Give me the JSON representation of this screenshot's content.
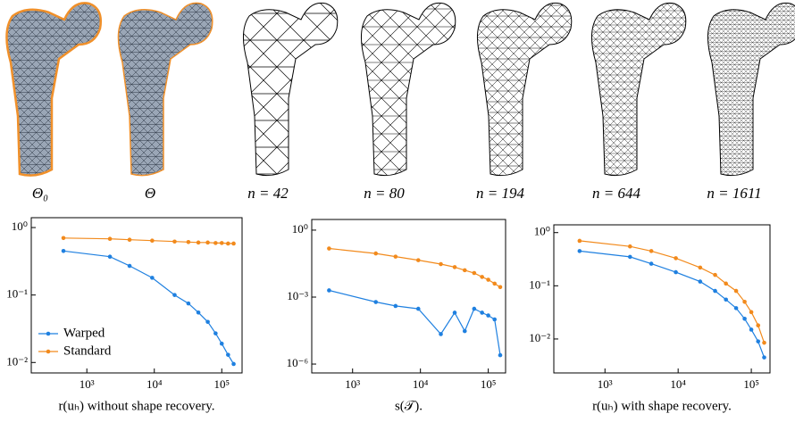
{
  "panels": [
    {
      "label": "Θ₀"
    },
    {
      "label": "Θ"
    },
    {
      "label": "n = 42"
    },
    {
      "label": "n = 80"
    },
    {
      "label": "n = 194"
    },
    {
      "label": "n = 644"
    },
    {
      "label": "n = 1611"
    }
  ],
  "chart_data": [
    {
      "type": "line",
      "xlabel": "r(uₕ) without shape recovery.",
      "log_x": true,
      "log_y": true,
      "grid": false,
      "legend": "lower left",
      "x": [
        450,
        2200,
        4300,
        9300,
        20000,
        32000,
        45000,
        62000,
        81000,
        100000,
        124000,
        150000
      ],
      "xlim": [
        150,
        200000
      ],
      "xticks": [
        {
          "value": 1000,
          "label": "10³"
        },
        {
          "value": 10000,
          "label": "10⁴"
        },
        {
          "value": 100000,
          "label": "10⁵"
        }
      ],
      "ylim": [
        0.007,
        1.4
      ],
      "yticks": [
        {
          "value": 1,
          "label": "10⁰"
        },
        {
          "value": 0.1,
          "label": "10⁻¹"
        },
        {
          "value": 0.01,
          "label": "10⁻²"
        }
      ],
      "series": [
        {
          "name": "Warped",
          "color": "#1f80e0",
          "values": [
            0.45,
            0.37,
            0.27,
            0.18,
            0.1,
            0.075,
            0.055,
            0.04,
            0.027,
            0.019,
            0.013,
            0.0095
          ]
        },
        {
          "name": "Standard",
          "color": "#f28a1c",
          "values": [
            0.7,
            0.68,
            0.66,
            0.64,
            0.62,
            0.61,
            0.6,
            0.6,
            0.59,
            0.59,
            0.58,
            0.58
          ]
        }
      ]
    },
    {
      "type": "line",
      "xlabel": "s(𝒯).",
      "log_x": true,
      "log_y": true,
      "grid": false,
      "x": [
        450,
        2200,
        4300,
        9300,
        20000,
        32000,
        45000,
        62000,
        81000,
        100000,
        124000,
        150000
      ],
      "xlim": [
        250,
        180000
      ],
      "xticks": [
        {
          "value": 1000,
          "label": "10³"
        },
        {
          "value": 10000,
          "label": "10⁴"
        },
        {
          "value": 100000,
          "label": "10⁵"
        }
      ],
      "ylim": [
        4e-07,
        3
      ],
      "yticks": [
        {
          "value": 1,
          "label": "10⁰"
        },
        {
          "value": 0.001,
          "label": "10⁻³"
        },
        {
          "value": 1e-06,
          "label": "10⁻⁶"
        }
      ],
      "series": [
        {
          "color": "#1f80e0",
          "values": [
            0.002,
            0.0006,
            0.0004,
            0.0003,
            2.2e-05,
            0.0002,
            3e-05,
            0.0003,
            0.0002,
            0.00015,
            0.0001,
            2.5e-06
          ]
        },
        {
          "color": "#f28a1c",
          "values": [
            0.15,
            0.09,
            0.065,
            0.045,
            0.03,
            0.022,
            0.016,
            0.012,
            0.008,
            0.006,
            0.004,
            0.0028
          ]
        }
      ]
    },
    {
      "type": "line",
      "xlabel": "r(uₕ) with shape recovery.",
      "log_x": true,
      "log_y": true,
      "grid": false,
      "x": [
        450,
        2200,
        4300,
        9300,
        20000,
        32000,
        45000,
        62000,
        81000,
        100000,
        124000,
        150000
      ],
      "xlim": [
        200,
        180000
      ],
      "xticks": [
        {
          "value": 1000,
          "label": "10³"
        },
        {
          "value": 10000,
          "label": "10⁴"
        },
        {
          "value": 100000,
          "label": "10⁵"
        }
      ],
      "ylim": [
        0.0023,
        1.4
      ],
      "yticks": [
        {
          "value": 1,
          "label": "10⁰"
        },
        {
          "value": 0.1,
          "label": "10⁻¹"
        },
        {
          "value": 0.01,
          "label": "10⁻²"
        }
      ],
      "series": [
        {
          "color": "#1f80e0",
          "values": [
            0.45,
            0.35,
            0.26,
            0.18,
            0.12,
            0.08,
            0.055,
            0.038,
            0.024,
            0.015,
            0.009,
            0.0045
          ]
        },
        {
          "color": "#f28a1c",
          "values": [
            0.7,
            0.55,
            0.45,
            0.33,
            0.22,
            0.16,
            0.11,
            0.08,
            0.05,
            0.032,
            0.018,
            0.0085
          ]
        }
      ]
    }
  ]
}
